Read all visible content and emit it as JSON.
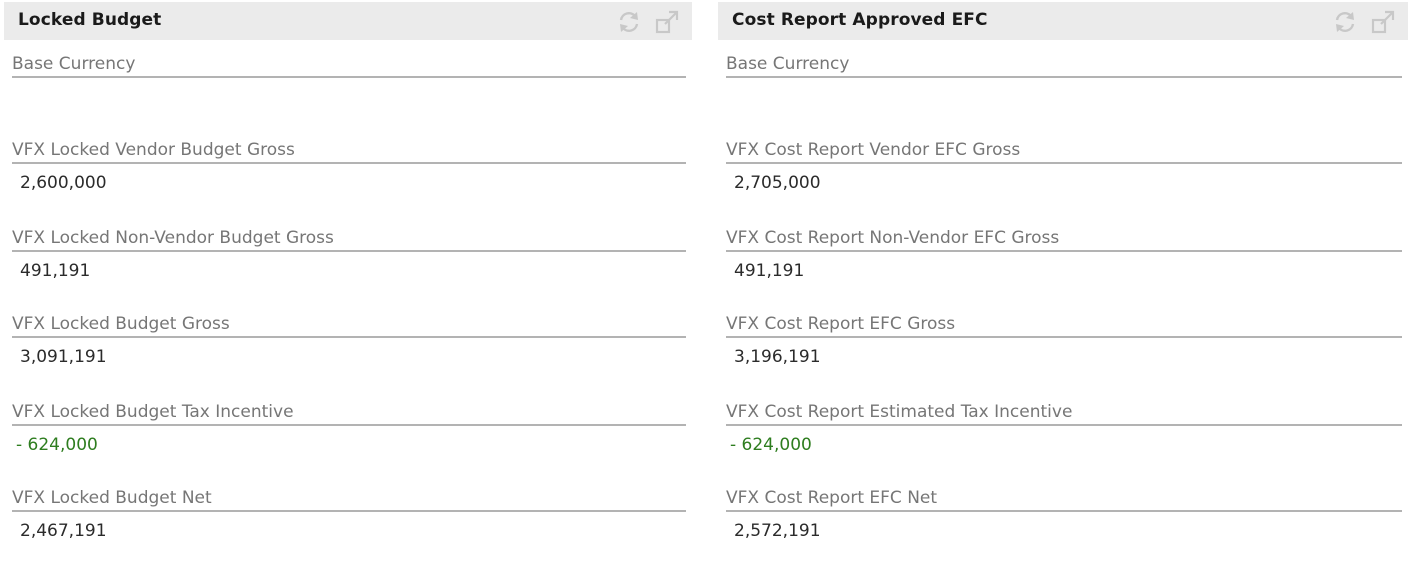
{
  "panels": [
    {
      "title": "Locked Budget",
      "fields": [
        {
          "label": "Base Currency",
          "value": ""
        },
        {
          "label": "VFX Locked Vendor Budget Gross",
          "value": "2,600,000"
        },
        {
          "label": "VFX Locked Non-Vendor Budget Gross",
          "value": "491,191"
        },
        {
          "label": "VFX Locked Budget Gross",
          "value": "3,091,191"
        },
        {
          "label": "VFX Locked Budget Tax Incentive",
          "value": "- 624,000"
        },
        {
          "label": "VFX Locked Budget Net",
          "value": "2,467,191"
        }
      ]
    },
    {
      "title": "Cost Report Approved EFC",
      "fields": [
        {
          "label": "Base Currency",
          "value": ""
        },
        {
          "label": "VFX Cost Report Vendor EFC Gross",
          "value": "2,705,000"
        },
        {
          "label": "VFX Cost Report Non-Vendor EFC Gross",
          "value": "491,191"
        },
        {
          "label": "VFX Cost Report EFC Gross",
          "value": "3,196,191"
        },
        {
          "label": "VFX Cost Report Estimated Tax Incentive",
          "value": "- 624,000"
        },
        {
          "label": "VFX Cost Report EFC Net",
          "value": "2,572,191"
        }
      ]
    }
  ],
  "icons": {
    "refresh": "refresh-icon",
    "popout": "popout-icon"
  },
  "colors": {
    "header_bg": "#ebebeb",
    "label": "#767676",
    "negative": "#2e7d1f"
  }
}
